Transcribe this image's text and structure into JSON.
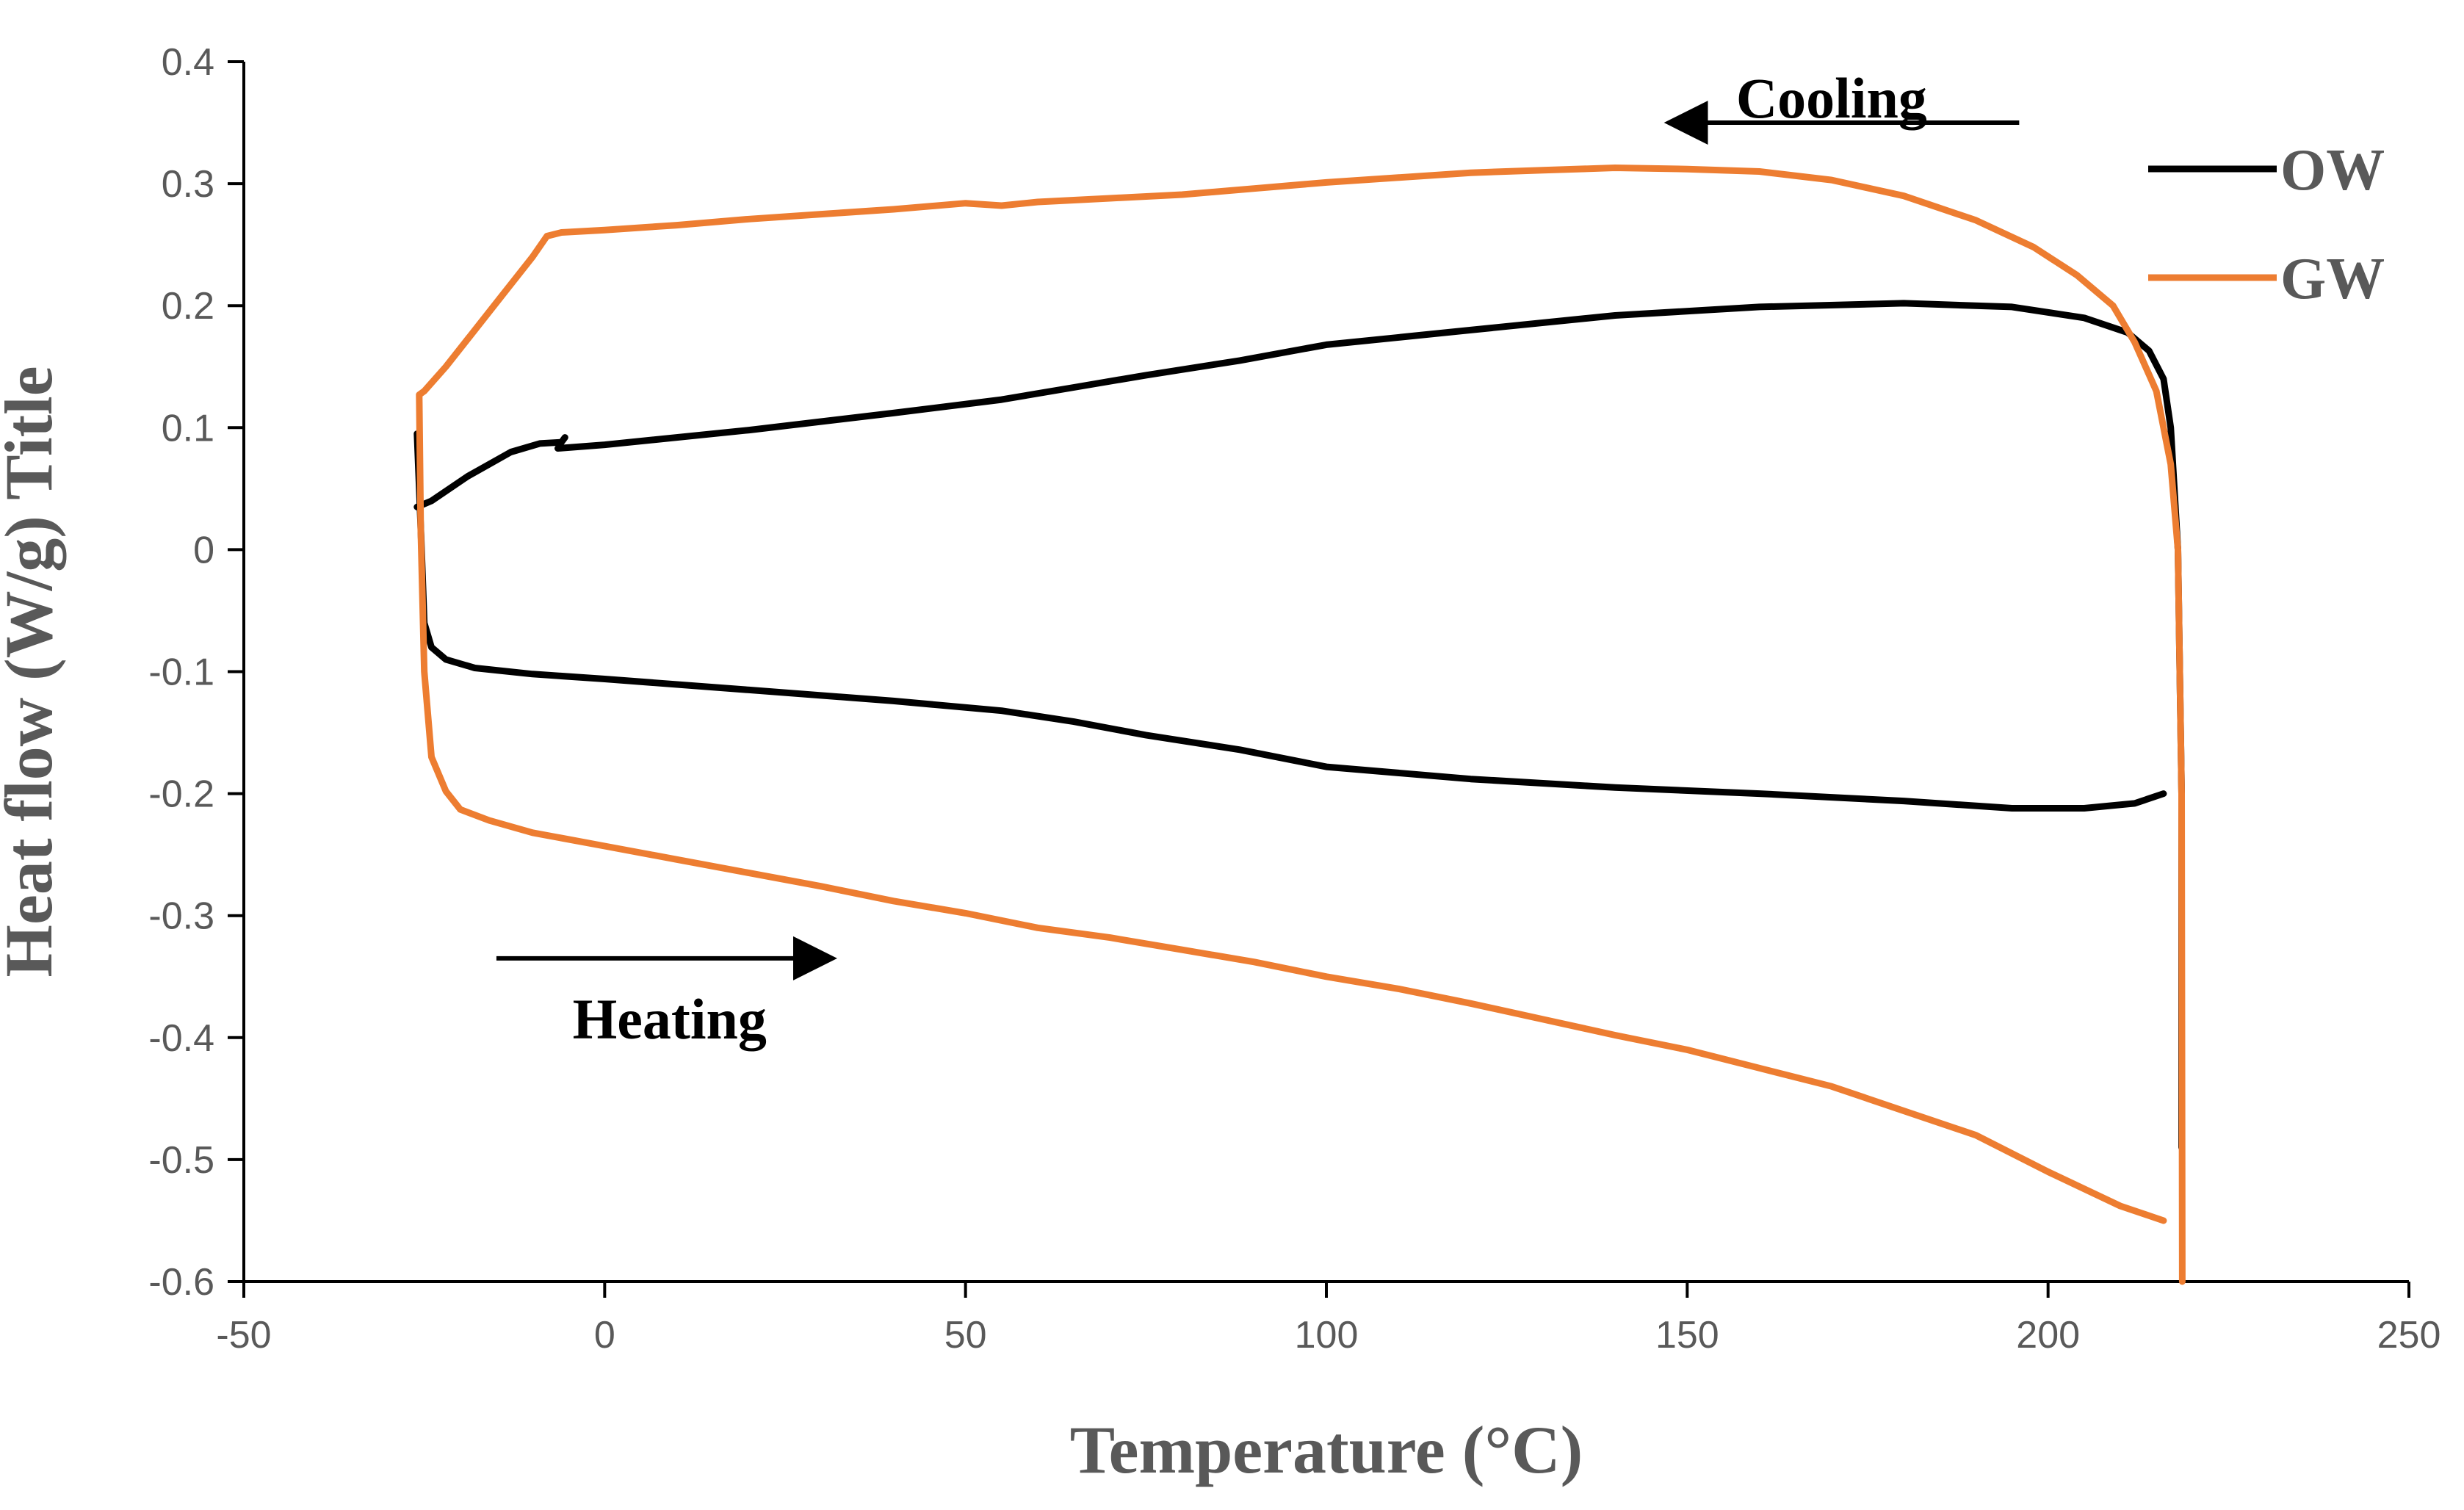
{
  "chart_data": {
    "type": "line",
    "title": "",
    "xlabel": "Temperature (°C)",
    "ylabel": "Heat flow (W/g) Title",
    "xlim": [
      -50,
      250
    ],
    "ylim": [
      -0.6,
      0.4
    ],
    "xticks": [
      -50,
      0,
      50,
      100,
      150,
      200,
      250
    ],
    "xtick_labels": [
      "-50",
      "0",
      "50",
      "100",
      "150",
      "200",
      "250"
    ],
    "yticks": [
      0.4,
      0.3,
      0.2,
      0.1,
      0,
      -0.1,
      -0.2,
      -0.3,
      -0.4,
      -0.5,
      -0.6
    ],
    "ytick_labels": [
      "0.4",
      "0.3",
      "0.2",
      "0.1",
      "0",
      "-0.1",
      "-0.2",
      "-0.3",
      "-0.4",
      "-0.5",
      "-0.6"
    ],
    "grid": false,
    "legend_position": "top-right",
    "series": [
      {
        "name": "OW",
        "color": "#000000",
        "points": [
          [
            -26,
            0.095
          ],
          [
            -25.5,
            0.02
          ],
          [
            -25,
            -0.06
          ],
          [
            -24,
            -0.08
          ],
          [
            -22,
            -0.09
          ],
          [
            -18,
            -0.097
          ],
          [
            -10,
            -0.102
          ],
          [
            0,
            -0.106
          ],
          [
            20,
            -0.115
          ],
          [
            40,
            -0.124
          ],
          [
            55,
            -0.132
          ],
          [
            65,
            -0.141
          ],
          [
            75,
            -0.152
          ],
          [
            88,
            -0.164
          ],
          [
            100,
            -0.178
          ],
          [
            120,
            -0.188
          ],
          [
            140,
            -0.195
          ],
          [
            160,
            -0.2
          ],
          [
            180,
            -0.206
          ],
          [
            195,
            -0.212
          ],
          [
            205,
            -0.212
          ],
          [
            212,
            -0.208
          ],
          [
            216,
            -0.2
          ],
          null,
          [
            -26,
            0.035
          ],
          [
            -24,
            0.04
          ],
          [
            -19,
            0.06
          ],
          [
            -13,
            0.08
          ],
          [
            -9,
            0.087
          ],
          [
            -6,
            0.088
          ],
          [
            -5.5,
            0.092
          ],
          null,
          [
            -6.5,
            0.083
          ],
          [
            0,
            0.086
          ],
          [
            20,
            0.098
          ],
          [
            40,
            0.112
          ],
          [
            55,
            0.123
          ],
          [
            65,
            0.133
          ],
          [
            75,
            0.143
          ],
          [
            88,
            0.155
          ],
          [
            100,
            0.168
          ],
          [
            120,
            0.18
          ],
          [
            140,
            0.192
          ],
          [
            160,
            0.199
          ],
          [
            180,
            0.202
          ],
          [
            195,
            0.199
          ],
          [
            205,
            0.19
          ],
          [
            211,
            0.178
          ],
          [
            214,
            0.163
          ],
          [
            216,
            0.14
          ],
          [
            217,
            0.1
          ],
          [
            218,
            0.0
          ],
          [
            218.5,
            -0.2
          ],
          [
            218.5,
            -0.49
          ]
        ]
      },
      {
        "name": "GW",
        "color": "#ED7D31",
        "points": [
          [
            216,
            -0.55
          ],
          [
            210,
            -0.538
          ],
          [
            200,
            -0.51
          ],
          [
            190,
            -0.48
          ],
          [
            180,
            -0.46
          ],
          [
            170,
            -0.44
          ],
          [
            160,
            -0.425
          ],
          [
            150,
            -0.41
          ],
          [
            140,
            -0.398
          ],
          [
            130,
            -0.385
          ],
          [
            120,
            -0.372
          ],
          [
            110,
            -0.36
          ],
          [
            100,
            -0.35
          ],
          [
            90,
            -0.338
          ],
          [
            80,
            -0.328
          ],
          [
            70,
            -0.318
          ],
          [
            60,
            -0.31
          ],
          [
            50,
            -0.298
          ],
          [
            40,
            -0.288
          ],
          [
            30,
            -0.276
          ],
          [
            20,
            -0.265
          ],
          [
            10,
            -0.254
          ],
          [
            0,
            -0.243
          ],
          [
            -10,
            -0.232
          ],
          [
            -16,
            -0.222
          ],
          [
            -20,
            -0.213
          ],
          [
            -22,
            -0.198
          ],
          [
            -24,
            -0.17
          ],
          [
            -25,
            -0.1
          ],
          [
            -25.5,
            0.02
          ],
          [
            -25.7,
            0.127
          ],
          [
            -25,
            0.13
          ],
          [
            -22,
            0.15
          ],
          [
            -18,
            0.18
          ],
          [
            -14,
            0.21
          ],
          [
            -10,
            0.24
          ],
          [
            -8,
            0.257
          ],
          [
            -6,
            0.26
          ],
          [
            0,
            0.262
          ],
          [
            10,
            0.266
          ],
          [
            20,
            0.271
          ],
          [
            30,
            0.275
          ],
          [
            40,
            0.279
          ],
          [
            50,
            0.284
          ],
          [
            55,
            0.282
          ],
          [
            60,
            0.285
          ],
          [
            70,
            0.288
          ],
          [
            80,
            0.291
          ],
          [
            90,
            0.296
          ],
          [
            100,
            0.301
          ],
          [
            110,
            0.305
          ],
          [
            120,
            0.309
          ],
          [
            130,
            0.311
          ],
          [
            140,
            0.313
          ],
          [
            150,
            0.312
          ],
          [
            160,
            0.31
          ],
          [
            170,
            0.303
          ],
          [
            180,
            0.29
          ],
          [
            190,
            0.27
          ],
          [
            198,
            0.248
          ],
          [
            204,
            0.225
          ],
          [
            209,
            0.2
          ],
          [
            212,
            0.17
          ],
          [
            215,
            0.13
          ],
          [
            217,
            0.07
          ],
          [
            218,
            0.0
          ],
          [
            218.5,
            -0.2
          ],
          [
            218.6,
            -0.6
          ]
        ]
      }
    ],
    "annotations": [
      {
        "label": "Cooling",
        "arrow_from": [
          196,
          0.35
        ],
        "arrow_to": [
          148,
          0.35
        ],
        "text_at": [
          170,
          0.37
        ]
      },
      {
        "label": "Heating",
        "arrow_from": [
          -15,
          -0.335
        ],
        "arrow_to": [
          31,
          -0.335
        ],
        "text_at": [
          9,
          -0.385
        ]
      }
    ]
  }
}
